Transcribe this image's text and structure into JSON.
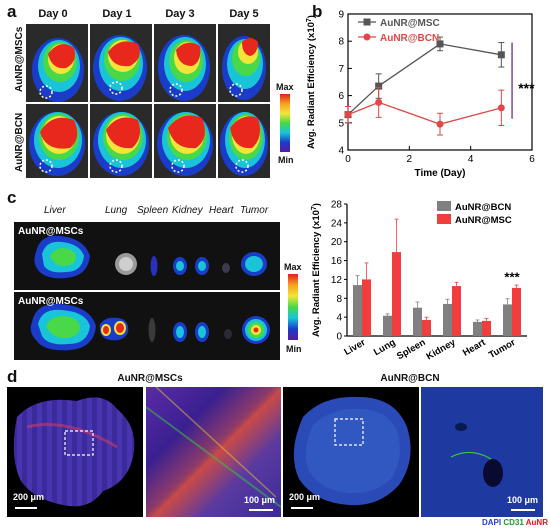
{
  "panels": {
    "a": "a",
    "b": "b",
    "c": "c",
    "d": "d"
  },
  "panel_a": {
    "days": [
      "Day 0",
      "Day 1",
      "Day 3",
      "Day 5"
    ],
    "rows": [
      "AuNR@MSCs",
      "AuNR@BCN"
    ],
    "colorbar_max": "Max",
    "colorbar_min": "Min"
  },
  "panel_c_image": {
    "organs": [
      "Liver",
      "Lung",
      "Spleen",
      "Kidney",
      "Heart",
      "Tumor"
    ],
    "strips": [
      "AuNR@MSCs",
      "AuNR@MSCs"
    ],
    "colorbar_max": "Max",
    "colorbar_min": "Min"
  },
  "panel_d": {
    "titles": [
      "AuNR@MSCs",
      "AuNR@BCN"
    ],
    "scale_bars": [
      "200 μm",
      "100 μm",
      "200 μm",
      "100 μm"
    ],
    "stain_legend": [
      "DAPI",
      "CD31",
      "AuNR"
    ],
    "stain_colors": [
      "#1f3fd8",
      "#1a9a2a",
      "#e01818"
    ]
  },
  "chart_data": [
    {
      "type": "line",
      "ylabel": "Avg. Radiant Efficiency (x10",
      "ylabel_exp": "7",
      "ylabel_close": ")",
      "xlabel": "Time (Day)",
      "xlim": [
        0,
        6
      ],
      "ylim": [
        4,
        9
      ],
      "xticks": [
        0,
        2,
        4,
        6
      ],
      "yticks": [
        4,
        5,
        6,
        7,
        8,
        9
      ],
      "x": [
        0,
        1,
        3,
        5
      ],
      "series": [
        {
          "name": "AuNR@MSC",
          "values": [
            5.3,
            6.35,
            7.9,
            7.5
          ],
          "errors": [
            0.3,
            0.45,
            0.25,
            0.45
          ],
          "color": "#555555",
          "marker": "square"
        },
        {
          "name": "AuNR@BCN",
          "values": [
            5.3,
            5.75,
            4.95,
            5.55
          ],
          "errors": [
            0.3,
            0.55,
            0.4,
            0.65
          ],
          "color": "#e04848",
          "marker": "circle"
        }
      ],
      "significance": "***"
    },
    {
      "type": "bar",
      "ylabel": "Avg. Radiant Efficiency (x10",
      "ylabel_exp": "7",
      "ylabel_close": ")",
      "categories": [
        "Liver",
        "Lung",
        "Spleen",
        "Kidney",
        "Heart",
        "Tumor"
      ],
      "ylim": [
        0,
        28
      ],
      "yticks": [
        0,
        4,
        8,
        12,
        16,
        20,
        24,
        28
      ],
      "series": [
        {
          "name": "AuNR@BCN",
          "values": [
            10.8,
            4.3,
            6.0,
            6.8,
            3.0,
            6.7
          ],
          "errors": [
            2.0,
            0.4,
            1.2,
            1.0,
            0.4,
            1.2
          ],
          "color": "#808080"
        },
        {
          "name": "AuNR@MSC",
          "values": [
            12.0,
            17.8,
            3.4,
            10.6,
            3.2,
            10.2
          ],
          "errors": [
            3.5,
            7.0,
            0.6,
            0.8,
            0.5,
            0.6
          ],
          "color": "#f03e3e"
        }
      ],
      "significance": "***"
    }
  ]
}
